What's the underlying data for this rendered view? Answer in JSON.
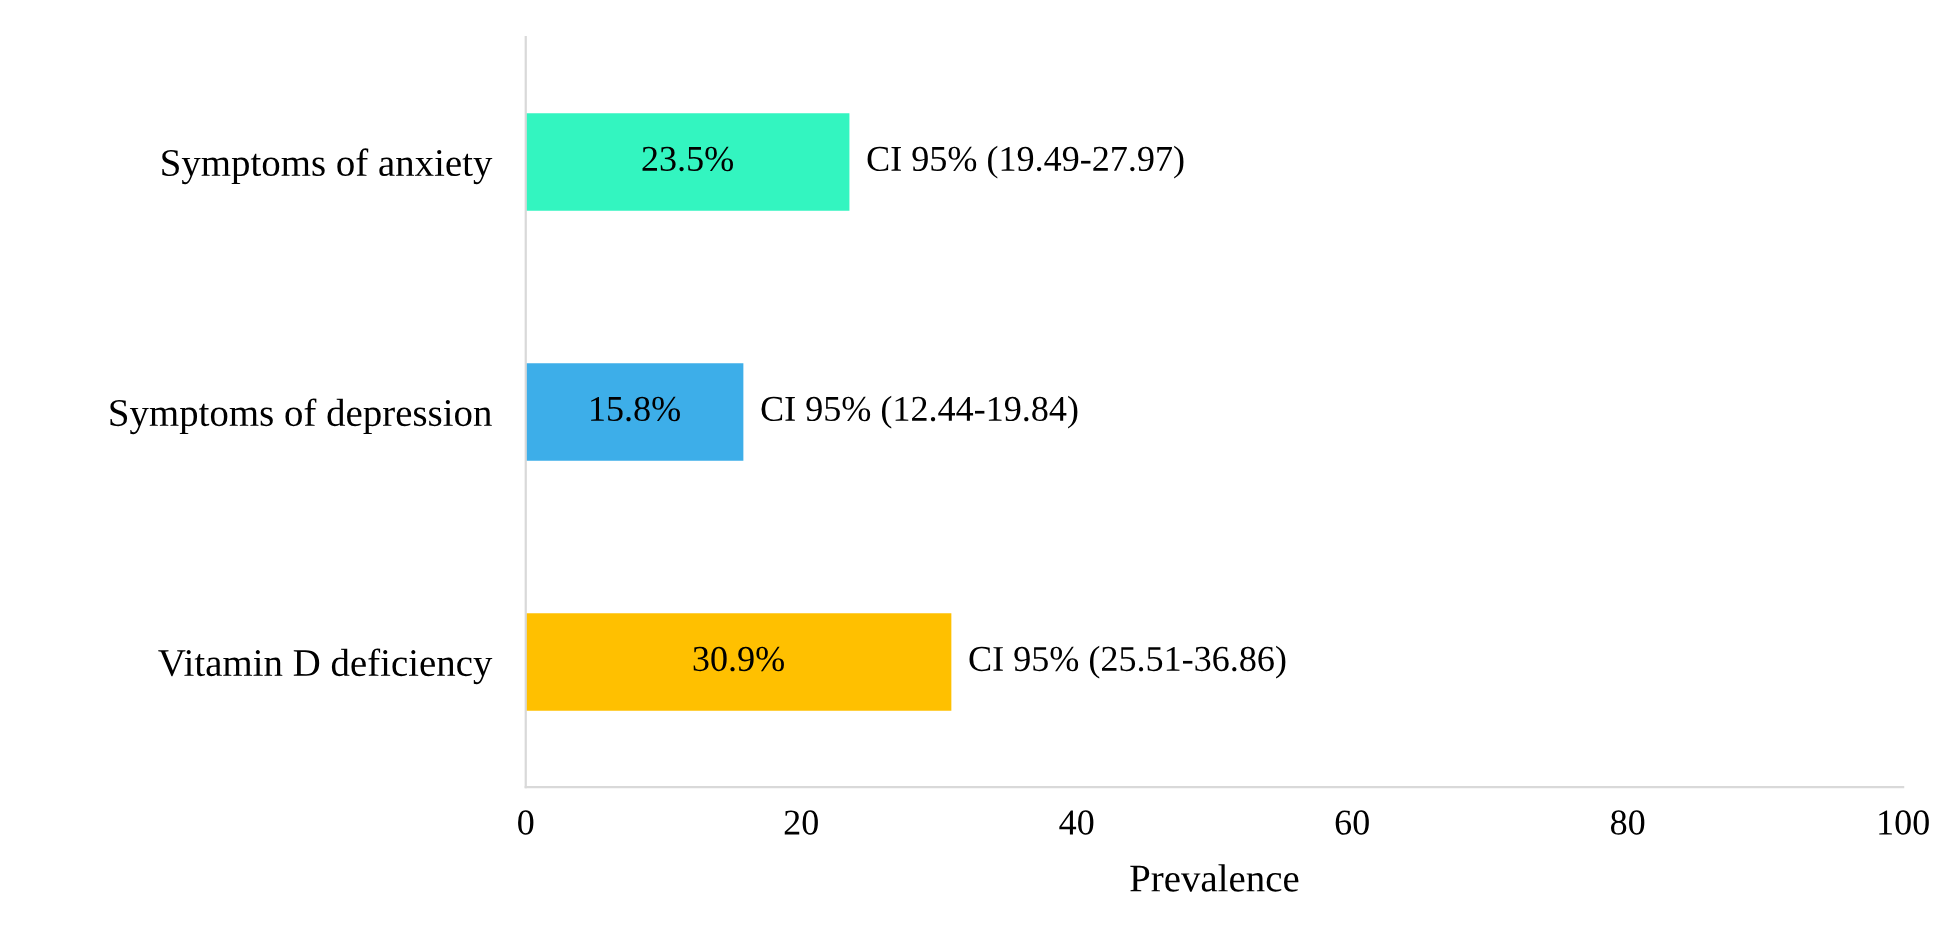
{
  "chart_data": {
    "type": "bar",
    "orientation": "horizontal",
    "xlabel": "Prevalence",
    "categories": [
      "Symptoms of anxiety",
      "Symptoms of depression",
      "Vitamin D deficiency"
    ],
    "values": [
      23.5,
      15.8,
      30.9
    ],
    "colors": [
      "#33f5c0",
      "#3daee9",
      "#ffc000"
    ],
    "value_labels": [
      "23.5%",
      "15.8%",
      "30.9%"
    ],
    "annotations": [
      {
        "text": "CI 95% (19.49-27.97)",
        "x": 23.5,
        "y": "Symptoms of anxiety"
      },
      {
        "text": "CI 95% (12.44-19.84)",
        "x": 15.8,
        "y": "Symptoms of depression"
      },
      {
        "text": "CI 95% (25.51-36.86)",
        "x": 30.9,
        "y": "Vitamin D deficiency"
      }
    ],
    "xlim": [
      0,
      100
    ],
    "xticks": [
      0,
      20,
      40,
      60,
      80,
      100
    ],
    "grid": false,
    "legend": false
  }
}
